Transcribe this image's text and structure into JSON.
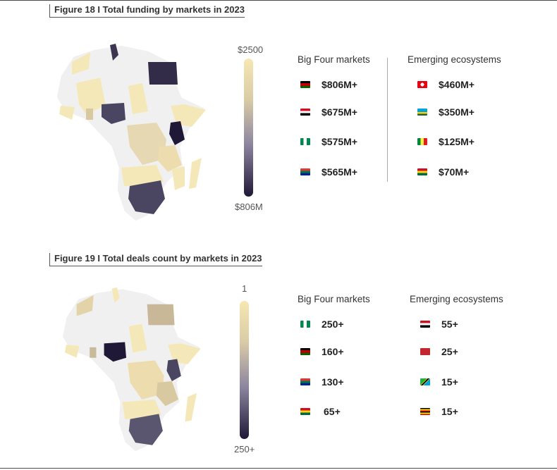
{
  "figures": [
    {
      "title": "Figure 18 I Total funding by markets in 2023",
      "legend": {
        "top_label": "$2500",
        "bottom_label": "$806M"
      },
      "big_four": {
        "title": "Big Four markets",
        "rows": [
          {
            "flag": "kenya-flag",
            "value": "$806M+"
          },
          {
            "flag": "egypt-flag",
            "value": "$675M+"
          },
          {
            "flag": "nigeria-flag",
            "value": "$575M+"
          },
          {
            "flag": "south-africa-flag",
            "value": "$565M+"
          }
        ]
      },
      "emerging": {
        "title": "Emerging  ecosystems",
        "rows": [
          {
            "flag": "tunisia-flag",
            "value": "$460M+"
          },
          {
            "flag": "rwanda-flag",
            "value": "$350M+"
          },
          {
            "flag": "senegal-flag",
            "value": "$125M+"
          },
          {
            "flag": "ghana-flag",
            "value": "$70M+"
          }
        ]
      }
    },
    {
      "title": "Figure 19 I Total deals count by markets in 2023",
      "legend": {
        "top_label": "1",
        "bottom_label": "250+"
      },
      "big_four": {
        "title": "Big Four markets",
        "rows": [
          {
            "flag": "nigeria-flag",
            "value": "250+"
          },
          {
            "flag": "kenya-flag",
            "value": "160+"
          },
          {
            "flag": "south-africa-flag",
            "value": "130+"
          },
          {
            "flag": "ghana-flag",
            "value": "65+"
          }
        ]
      },
      "emerging": {
        "title": "Emerging  ecosystems",
        "rows": [
          {
            "flag": "egypt-flag",
            "value": "55+"
          },
          {
            "flag": "morocco-flag",
            "value": "25+"
          },
          {
            "flag": "tanzania-flag",
            "value": "15+"
          },
          {
            "flag": "uganda-flag",
            "value": "15+"
          }
        ]
      }
    }
  ],
  "chart_data": [
    {
      "type": "table",
      "title": "Figure 18 I Total funding by markets in 2023",
      "legend_range": [
        "$806M",
        "$2500"
      ],
      "series": [
        {
          "name": "Big Four markets",
          "categories": [
            "Kenya",
            "Egypt",
            "Nigeria",
            "South Africa"
          ],
          "values": [
            "$806M+",
            "$675M+",
            "$575M+",
            "$565M+"
          ]
        },
        {
          "name": "Emerging  ecosystems",
          "categories": [
            "Tunisia",
            "Rwanda",
            "Senegal",
            "Ghana"
          ],
          "values": [
            "$460M+",
            "$350M+",
            "$125M+",
            "$70M+"
          ]
        }
      ]
    },
    {
      "type": "table",
      "title": "Figure 19 I Total deals count by markets in 2023",
      "legend_range": [
        "1",
        "250+"
      ],
      "series": [
        {
          "name": "Big Four markets",
          "categories": [
            "Nigeria",
            "Kenya",
            "South Africa",
            "Ghana"
          ],
          "values": [
            "250+",
            "160+",
            "130+",
            "65+"
          ]
        },
        {
          "name": "Emerging  ecosystems",
          "categories": [
            "Egypt",
            "Morocco",
            "Tanzania",
            "Uganda"
          ],
          "values": [
            "55+",
            "25+",
            "15+",
            "15+"
          ]
        }
      ]
    }
  ]
}
